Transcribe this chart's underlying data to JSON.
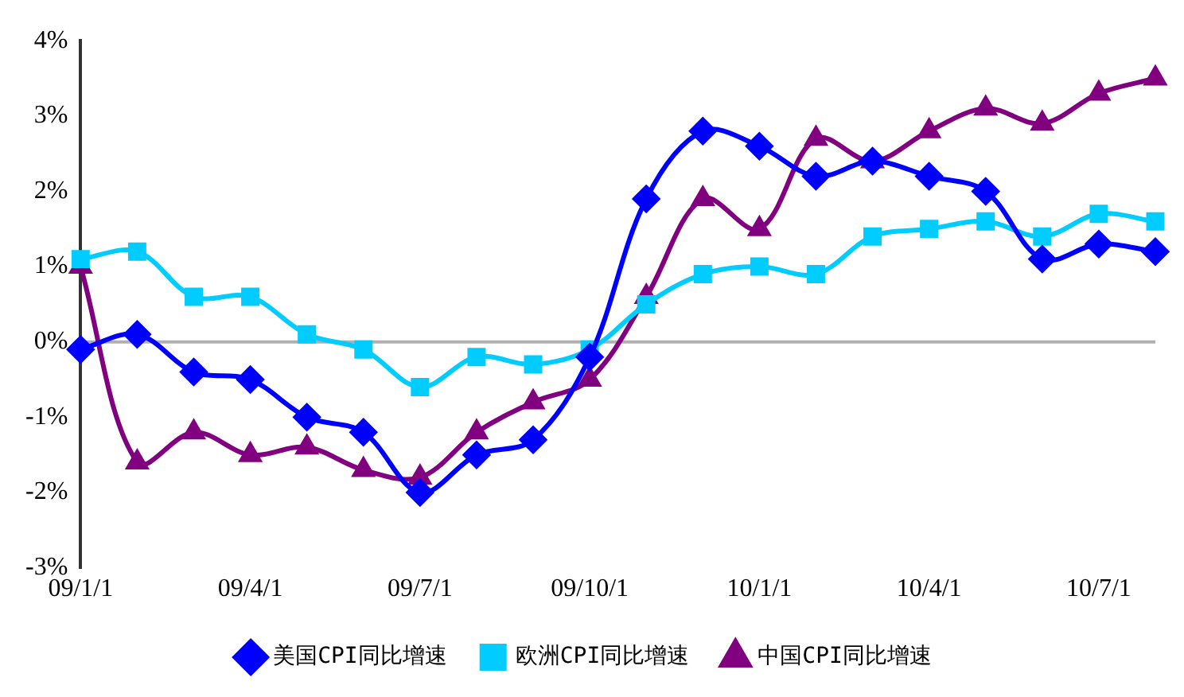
{
  "chart_data": {
    "type": "line",
    "categories": [
      "09/1/1",
      null,
      null,
      "09/4/1",
      null,
      null,
      "09/7/1",
      null,
      null,
      "09/10/1",
      null,
      null,
      "10/1/1",
      null,
      null,
      "10/4/1",
      null,
      null,
      "10/7/1",
      null
    ],
    "series": [
      {
        "name": "美国CPI同比增速",
        "color": "#0000ff",
        "marker": "diamond",
        "values": [
          -0.1,
          0.1,
          -0.4,
          -0.5,
          -1.0,
          -1.2,
          -2.0,
          -1.5,
          -1.3,
          -0.2,
          1.9,
          2.8,
          2.6,
          2.2,
          2.4,
          2.2,
          2.0,
          1.1,
          1.3,
          1.2
        ]
      },
      {
        "name": "欧洲CPI同比增速",
        "color": "#00ccff",
        "marker": "square",
        "values": [
          1.1,
          1.2,
          0.6,
          0.6,
          0.1,
          -0.1,
          -0.6,
          -0.2,
          -0.3,
          -0.1,
          0.5,
          0.9,
          1.0,
          0.9,
          1.4,
          1.5,
          1.6,
          1.4,
          1.7,
          1.6
        ]
      },
      {
        "name": "中国CPI同比增速",
        "color": "#800080",
        "marker": "triangle",
        "values": [
          1.0,
          -1.6,
          -1.2,
          -1.5,
          -1.4,
          -1.7,
          -1.8,
          -1.2,
          -0.8,
          -0.5,
          0.6,
          1.9,
          1.5,
          2.7,
          2.4,
          2.8,
          3.1,
          2.9,
          3.3,
          3.5
        ]
      }
    ],
    "ylim": [
      -3,
      4
    ],
    "yticks": [
      {
        "value": -3,
        "label": "-3%"
      },
      {
        "value": -2,
        "label": "-2%"
      },
      {
        "value": -1,
        "label": "-1%"
      },
      {
        "value": 0,
        "label": "0%"
      },
      {
        "value": 1,
        "label": "1%"
      },
      {
        "value": 2,
        "label": "2%"
      },
      {
        "value": 3,
        "label": "3%"
      },
      {
        "value": 4,
        "label": "4%"
      }
    ],
    "grid": false,
    "ref_lines": [
      {
        "axis": "y",
        "value": 0,
        "color": "#b0b0b0"
      }
    ],
    "legend": "bottom"
  }
}
